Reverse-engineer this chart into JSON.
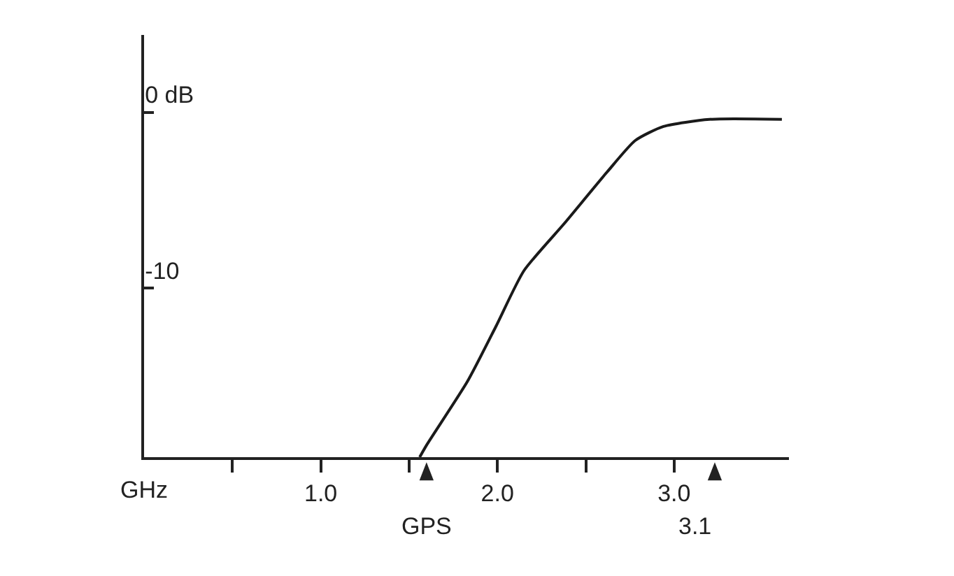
{
  "chart_data": {
    "type": "line",
    "xlabel": "GHz",
    "x": [
      1.56,
      1.6,
      1.83,
      1.99,
      2.15,
      2.38,
      2.62,
      2.78,
      2.94,
      3.2,
      3.61
    ],
    "series": [
      {
        "color": "#1a1a1a",
        "values": [
          -19.6,
          -18.9,
          -15.3,
          -12.2,
          -9.0,
          -6.3,
          -3.4,
          -1.6,
          -0.8,
          -0.4,
          -0.4
        ]
      }
    ],
    "xlim": [
      0,
      3.65
    ],
    "xticks": [
      {
        "value": 0.5,
        "label": null
      },
      {
        "value": 1,
        "label": "1.0"
      },
      {
        "value": 1.5,
        "label": null
      },
      {
        "value": 2,
        "label": "2.0"
      },
      {
        "value": 2.5,
        "label": null
      },
      {
        "value": 3,
        "label": "3.0"
      }
    ],
    "ylim": [
      -19.6,
      4.4
    ],
    "yticks": [
      {
        "value": 0,
        "label": "0 dB"
      },
      -10
    ],
    "annotations": [
      "GPS",
      "3.1"
    ],
    "legend": false,
    "marker": "none",
    "line_style": "solid"
  }
}
